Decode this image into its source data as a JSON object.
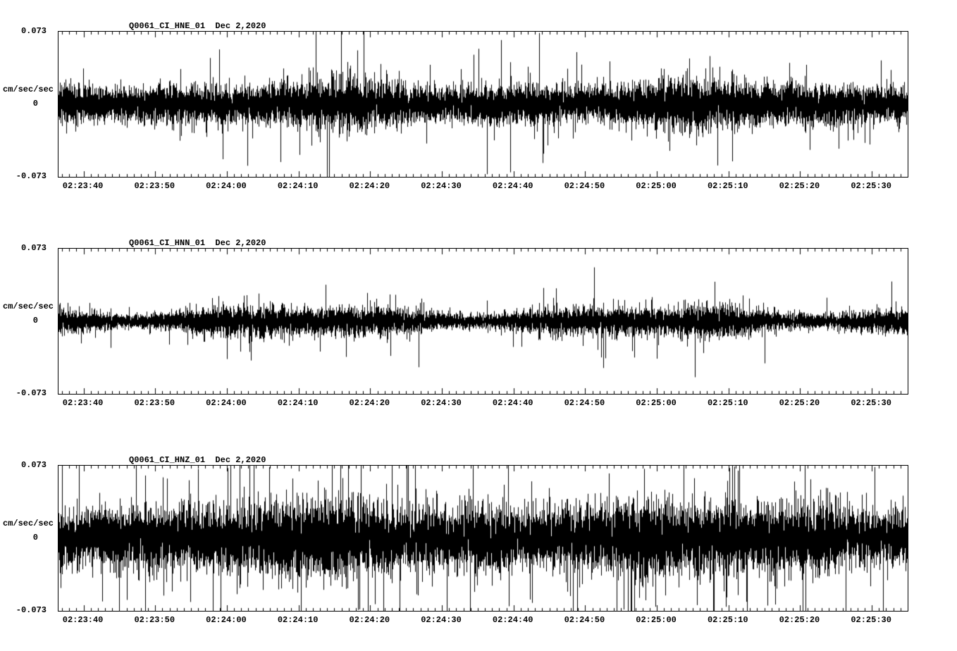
{
  "page": {
    "background": "#ffffff",
    "trace_color": "#000000"
  },
  "chart_data": [
    {
      "type": "line",
      "title": "Q0061_CI_HNE_01  Dec 2,2020",
      "station": "Q0061_CI_HNE_01",
      "date": "Dec 2,2020",
      "ylabel": "cm/sec/sec",
      "ylim": [
        -0.073,
        0.073
      ],
      "ytick_labels": {
        "top": "0.073",
        "mid": "0",
        "bottom": "-0.073"
      },
      "xticks": [
        "02:23:40",
        "02:23:50",
        "02:24:00",
        "02:24:10",
        "02:24:20",
        "02:24:30",
        "02:24:40",
        "02:24:50",
        "02:25:00",
        "02:25:10",
        "02:25:20",
        "02:25:30"
      ],
      "x_axis": {
        "start_offset_s": -3.5,
        "span_s": 118.5,
        "major_step_s": 10,
        "minor_step_s": 1
      },
      "grid": false,
      "legend": false,
      "series": [
        {
          "name": "HNE",
          "kind": "seismic-noise",
          "units": "cm/sec/sec",
          "rms": 0.01,
          "spike_prob": 0.02,
          "spike_max_scale": 4.2,
          "env_depth": 0.15,
          "seed": 11,
          "extremes": [
            {
              "time": "02:24:14",
              "t_s": 34,
              "value": -0.073
            }
          ]
        }
      ]
    },
    {
      "type": "line",
      "title": "Q0061_CI_HNN_01  Dec 2,2020",
      "station": "Q0061_CI_HNN_01",
      "date": "Dec 2,2020",
      "ylabel": "cm/sec/sec",
      "ylim": [
        -0.073,
        0.073
      ],
      "ytick_labels": {
        "top": "0.073",
        "mid": "0",
        "bottom": "-0.073"
      },
      "xticks": [
        "02:23:40",
        "02:23:50",
        "02:24:00",
        "02:24:10",
        "02:24:20",
        "02:24:30",
        "02:24:40",
        "02:24:50",
        "02:25:00",
        "02:25:10",
        "02:25:20",
        "02:25:30"
      ],
      "x_axis": {
        "start_offset_s": -3.5,
        "span_s": 118.5,
        "major_step_s": 10,
        "minor_step_s": 1
      },
      "grid": false,
      "legend": false,
      "series": [
        {
          "name": "HNN",
          "kind": "seismic-noise",
          "units": "cm/sec/sec",
          "rms": 0.006,
          "spike_prob": 0.015,
          "spike_max_scale": 4.0,
          "env_depth": 0.28,
          "seed": 22,
          "extremes": [
            {
              "time": "02:24:52",
              "t_s": 72.5,
              "value": -0.047
            },
            {
              "time": "02:24:00",
              "t_s": 20,
              "value": -0.038
            }
          ]
        }
      ]
    },
    {
      "type": "line",
      "title": "Q0061_CI_HNZ_01  Dec 2,2020",
      "station": "Q0061_CI_HNZ_01",
      "date": "Dec 2,2020",
      "ylabel": "cm/sec/sec",
      "ylim": [
        -0.073,
        0.073
      ],
      "ytick_labels": {
        "top": "0.073",
        "mid": "0",
        "bottom": "-0.073"
      },
      "xticks": [
        "02:23:40",
        "02:23:50",
        "02:24:00",
        "02:24:10",
        "02:24:20",
        "02:24:30",
        "02:24:40",
        "02:24:50",
        "02:25:00",
        "02:25:10",
        "02:25:20",
        "02:25:30"
      ],
      "x_axis": {
        "start_offset_s": -3.5,
        "span_s": 118.5,
        "major_step_s": 10,
        "minor_step_s": 1
      },
      "grid": false,
      "legend": false,
      "series": [
        {
          "name": "HNZ",
          "kind": "seismic-noise",
          "units": "cm/sec/sec",
          "rms": 0.016,
          "spike_prob": 0.028,
          "spike_max_scale": 4.0,
          "env_depth": 0.12,
          "seed": 33,
          "extremes": [
            {
              "time": "02:25:11",
              "t_s": 91.3,
              "value": 0.068
            },
            {
              "time": "02:23:46",
              "t_s": 6,
              "value": -0.062
            }
          ]
        }
      ]
    }
  ]
}
